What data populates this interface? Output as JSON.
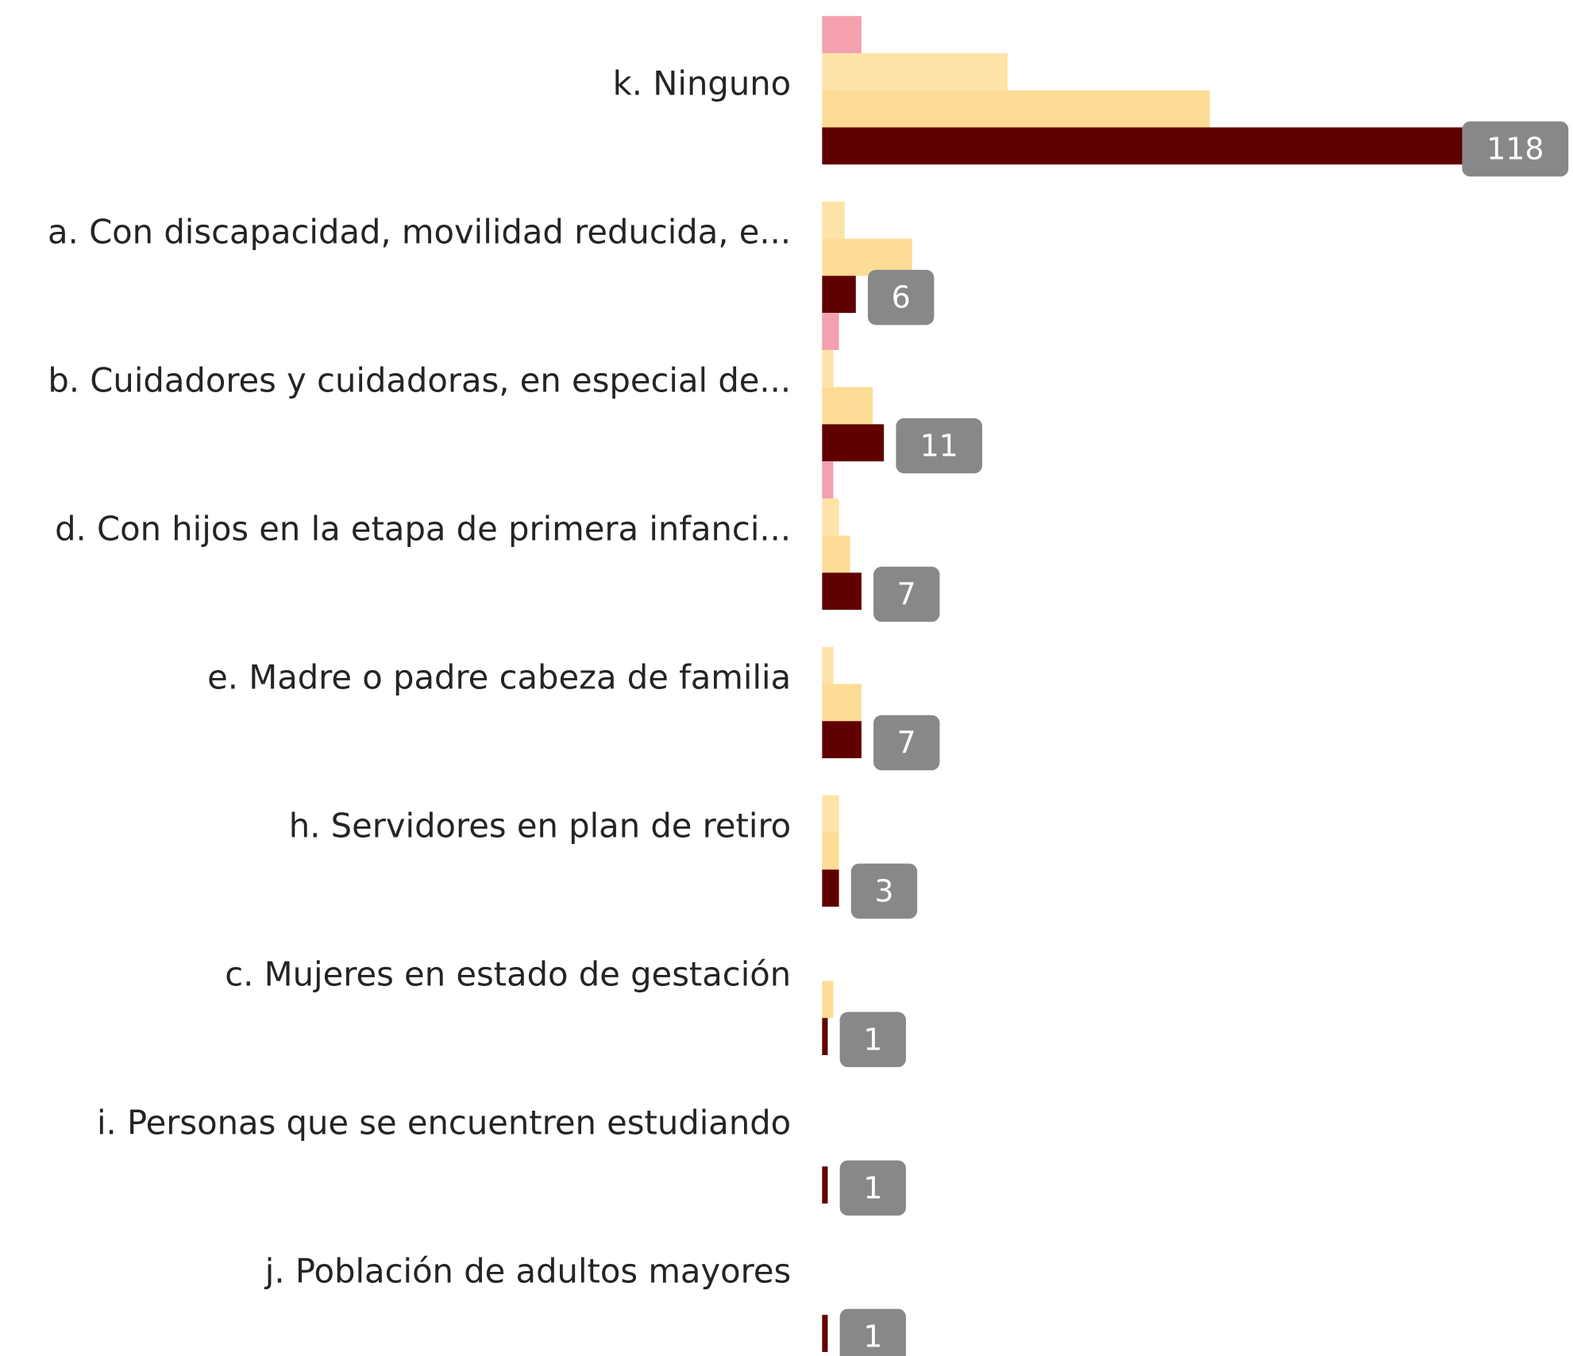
{
  "chart_data": {
    "type": "bar",
    "orientation": "horizontal",
    "categories": [
      "k. Ninguno",
      "a. Con discapacidad, movilidad reducida, e...",
      "b. Cuidadores y cuidadoras, en especial de...",
      "d. Con hijos en la etapa de primera infanci...",
      "e. Madre o padre cabeza de familia",
      "h. Servidores en plan de retiro",
      "c. Mujeres en estado de gestación",
      "i. Personas que se encuentren estudiando",
      "j. Población de adultos mayores"
    ],
    "series": [
      {
        "color": "#f4a0ae",
        "values": [
          7,
          null,
          3,
          2,
          null,
          null,
          null,
          null,
          null
        ]
      },
      {
        "color": "#fde3a7",
        "values": [
          33,
          4,
          2,
          3,
          2,
          3,
          null,
          null,
          null
        ]
      },
      {
        "color": "#fddc96",
        "values": [
          69,
          16,
          9,
          5,
          7,
          3,
          2,
          null,
          null
        ]
      },
      {
        "color": "#600000",
        "values": [
          118,
          6,
          11,
          7,
          7,
          3,
          1,
          1,
          1
        ],
        "labels": true
      }
    ]
  }
}
